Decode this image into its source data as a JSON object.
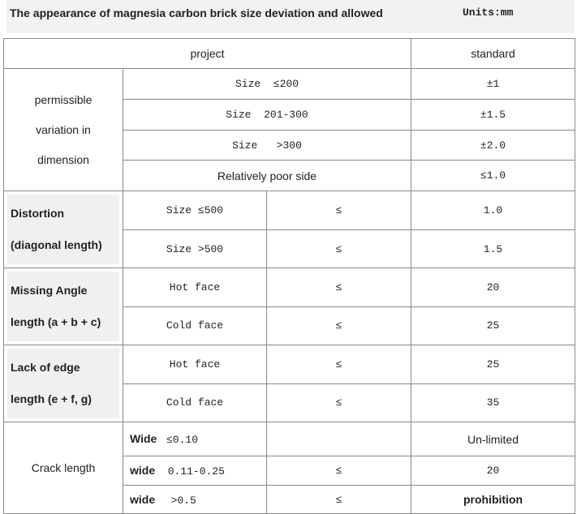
{
  "header": {
    "title": "The appearance of magnesia carbon brick size deviation and allowed",
    "units": "Units:mm"
  },
  "table": {
    "columns": [
      "project",
      "standard"
    ],
    "sections": [
      {
        "label": "permissible variation in dimension",
        "rows": [
          {
            "item": "Size  ≤200",
            "standard": "±1"
          },
          {
            "item": "Size  201-300",
            "standard": "±1.5"
          },
          {
            "item": "Size   >300",
            "standard": "±2.0"
          },
          {
            "item": "Relatively poor side",
            "standard": "≤1.0"
          }
        ]
      },
      {
        "label_lines": [
          "Distortion",
          "(diagonal length)"
        ],
        "rows": [
          {
            "item": "Size ≤500",
            "symbol": "≤",
            "standard": "1.0"
          },
          {
            "item": "Size >500",
            "symbol": "≤",
            "standard": "1.5"
          }
        ]
      },
      {
        "label_lines": [
          "Missing Angle",
          "length (a + b + c)"
        ],
        "rows": [
          {
            "item": "Hot face",
            "symbol": "≤",
            "standard": "20"
          },
          {
            "item": "Cold face",
            "symbol": "≤",
            "standard": "25"
          }
        ]
      },
      {
        "label_lines": [
          "Lack of edge",
          "length (e + f, g)"
        ],
        "rows": [
          {
            "item": "Hot face",
            "symbol": "≤",
            "standard": "25"
          },
          {
            "item": "Cold face",
            "symbol": "≤",
            "standard": "35"
          }
        ]
      },
      {
        "label": "Crack length",
        "rows": [
          {
            "item": "Wide",
            "range": "≤0.10",
            "standard": "Un-limited"
          },
          {
            "item": "wide",
            "range": "0.11-0.25",
            "symbol": "≤",
            "standard": "20"
          },
          {
            "item": "wide",
            "range": ">0.5",
            "symbol": "≤",
            "standard": "prohibition"
          }
        ]
      }
    ]
  }
}
